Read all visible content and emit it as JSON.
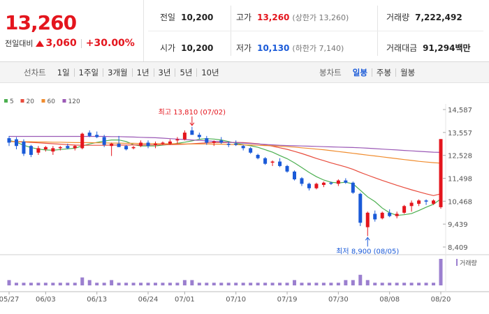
{
  "summary": {
    "price": "13,260",
    "change_label": "전일대비",
    "change_amount": "3,060",
    "change_pct": "+30.00%",
    "up_color": "#e4151d",
    "down_color": "#1a5ad8"
  },
  "stats": {
    "prev_close_label": "전일",
    "prev_close": "10,200",
    "open_label": "시가",
    "open": "10,200",
    "high_label": "고가",
    "high": "13,260",
    "upper_limit": "(상한가 13,260)",
    "low_label": "저가",
    "low": "10,130",
    "lower_limit": "(하한가 7,140)",
    "volume_label": "거래량",
    "volume": "7,222,492",
    "turnover_label": "거래대금",
    "turnover": "91,294백만"
  },
  "tabs": {
    "line_title": "선차트",
    "line_tabs": [
      "1일",
      "1주일",
      "3개월",
      "1년",
      "3년",
      "5년",
      "10년"
    ],
    "candle_title": "봉차트",
    "candle_tabs": [
      "일봉",
      "주봉",
      "월봉"
    ],
    "active_candle": "일봉"
  },
  "chart_data": {
    "type": "candlestick",
    "legend": [
      {
        "name": "5",
        "color": "#4caf50"
      },
      {
        "name": "20",
        "color": "#e84c3d"
      },
      {
        "name": "60",
        "color": "#f08c2e"
      },
      {
        "name": "120",
        "color": "#9b59b6"
      }
    ],
    "y_ticks": [
      "14,587",
      "13,557",
      "12,528",
      "11,498",
      "10,468",
      "9,439",
      "8,409"
    ],
    "ylim": [
      8409,
      14587
    ],
    "x_ticks": [
      {
        "label": "05/27",
        "index": 0
      },
      {
        "label": "06/03",
        "index": 5
      },
      {
        "label": "06/13",
        "index": 12
      },
      {
        "label": "06/24",
        "index": 19
      },
      {
        "label": "07/01",
        "index": 24
      },
      {
        "label": "07/10",
        "index": 31
      },
      {
        "label": "07/19",
        "index": 38
      },
      {
        "label": "07/30",
        "index": 45
      },
      {
        "label": "08/08",
        "index": 52
      },
      {
        "label": "08/20",
        "index": 59
      }
    ],
    "high_annotation": {
      "text": "최고 13,810 (07/02)",
      "index": 25,
      "value": 13810
    },
    "low_annotation": {
      "text": "최저 8,900 (08/05)",
      "index": 49,
      "value": 8900
    },
    "candles": [
      [
        13300,
        13400,
        12950,
        13100
      ],
      [
        13250,
        13350,
        12800,
        12950
      ],
      [
        13150,
        13250,
        12500,
        12600
      ],
      [
        12950,
        13000,
        12450,
        12550
      ],
      [
        12650,
        12950,
        12550,
        12850
      ],
      [
        12800,
        12950,
        12700,
        12900
      ],
      [
        12700,
        12950,
        12550,
        12850
      ],
      [
        12850,
        12950,
        12750,
        12900
      ],
      [
        12950,
        13050,
        12800,
        12850
      ],
      [
        12850,
        13000,
        12750,
        12950
      ],
      [
        12850,
        13550,
        12800,
        13500
      ],
      [
        13550,
        13650,
        13350,
        13400
      ],
      [
        13450,
        13600,
        13300,
        13350
      ],
      [
        13350,
        13450,
        12900,
        13000
      ],
      [
        12950,
        13100,
        12500,
        13050
      ],
      [
        13050,
        13400,
        12950,
        12900
      ],
      [
        12950,
        13000,
        12750,
        12800
      ],
      [
        12850,
        12950,
        12800,
        12900
      ],
      [
        12950,
        13200,
        12900,
        13100
      ],
      [
        13100,
        13200,
        12850,
        12950
      ],
      [
        13000,
        13150,
        12850,
        13050
      ],
      [
        13050,
        13150,
        13000,
        13100
      ],
      [
        13050,
        13250,
        13000,
        13150
      ],
      [
        13200,
        13350,
        13050,
        13250
      ],
      [
        13250,
        13650,
        13200,
        13550
      ],
      [
        13650,
        13810,
        13500,
        13450
      ],
      [
        13450,
        13550,
        13250,
        13350
      ],
      [
        13300,
        13400,
        13000,
        13100
      ],
      [
        13100,
        13200,
        12950,
        13150
      ],
      [
        13200,
        13350,
        13050,
        13100
      ],
      [
        13050,
        13150,
        12900,
        13000
      ],
      [
        13050,
        13200,
        12950,
        13000
      ],
      [
        12950,
        13000,
        12750,
        12850
      ],
      [
        12850,
        12900,
        12600,
        12650
      ],
      [
        12550,
        12600,
        12350,
        12400
      ],
      [
        12400,
        12450,
        12100,
        12150
      ],
      [
        12200,
        12300,
        12050,
        12250
      ],
      [
        12250,
        12400,
        12000,
        12050
      ],
      [
        12050,
        12100,
        11750,
        11800
      ],
      [
        11800,
        11850,
        11400,
        11450
      ],
      [
        11500,
        11550,
        11150,
        11250
      ],
      [
        11250,
        11300,
        10950,
        11050
      ],
      [
        11050,
        11300,
        11000,
        11250
      ],
      [
        11200,
        11350,
        11100,
        11300
      ],
      [
        11300,
        11350,
        11200,
        11250
      ],
      [
        11250,
        11450,
        11150,
        11400
      ],
      [
        11400,
        11500,
        11250,
        11300
      ],
      [
        11300,
        11350,
        10800,
        10850
      ],
      [
        10800,
        10850,
        9350,
        9500
      ],
      [
        9300,
        10000,
        8900,
        9950
      ],
      [
        9900,
        10050,
        9550,
        9650
      ],
      [
        9700,
        10000,
        9650,
        9950
      ],
      [
        9950,
        10100,
        9750,
        9800
      ],
      [
        9800,
        10000,
        9700,
        9900
      ],
      [
        9950,
        10300,
        9900,
        10250
      ],
      [
        10250,
        10500,
        10000,
        10400
      ],
      [
        10350,
        10550,
        10250,
        10500
      ],
      [
        10500,
        10550,
        10300,
        10450
      ],
      [
        10350,
        10550,
        10300,
        10500
      ],
      [
        10200,
        13260,
        10130,
        13260
      ]
    ],
    "ma": {
      "5": [
        13200,
        13120,
        12980,
        12880,
        12810,
        12770,
        12760,
        12790,
        12820,
        12850,
        12950,
        13040,
        13110,
        13170,
        13220,
        13220,
        13150,
        13010,
        12950,
        12950,
        12950,
        12990,
        13020,
        13070,
        13120,
        13180,
        13250,
        13280,
        13260,
        13220,
        13150,
        13070,
        13010,
        12960,
        12890,
        12780,
        12670,
        12520,
        12380,
        12190,
        11980,
        11760,
        11570,
        11420,
        11320,
        11290,
        11320,
        11250,
        10960,
        10660,
        10450,
        10160,
        9950,
        9830,
        9860,
        9910,
        10050,
        10200,
        10330,
        10570
      ],
      "20": [
        13150,
        13140,
        13130,
        13110,
        13090,
        13070,
        13050,
        13030,
        13010,
        12990,
        12980,
        12980,
        12980,
        12980,
        12990,
        12990,
        12990,
        13000,
        13000,
        13000,
        13000,
        13010,
        13010,
        13020,
        13030,
        13050,
        13070,
        13090,
        13100,
        13110,
        13110,
        13110,
        13100,
        13080,
        13050,
        13000,
        12940,
        12870,
        12800,
        12710,
        12610,
        12500,
        12390,
        12290,
        12190,
        12100,
        12010,
        11900,
        11760,
        11640,
        11520,
        11400,
        11290,
        11180,
        11080,
        10980,
        10890,
        10800,
        10720,
        10800
      ],
      "60": [
        13150,
        13150,
        13140,
        13140,
        13130,
        13130,
        13120,
        13120,
        13110,
        13100,
        13100,
        13100,
        13090,
        13090,
        13080,
        13080,
        13070,
        13070,
        13060,
        13060,
        13060,
        13050,
        13050,
        13050,
        13040,
        13040,
        13040,
        13040,
        13030,
        13030,
        13020,
        13010,
        13000,
        12990,
        12980,
        12970,
        12960,
        12940,
        12920,
        12900,
        12870,
        12840,
        12810,
        12780,
        12740,
        12700,
        12660,
        12620,
        12580,
        12540,
        12500,
        12460,
        12420,
        12380,
        12340,
        12300,
        12260,
        12230,
        12200,
        12180
      ],
      "120": [
        13380,
        13380,
        13380,
        13380,
        13380,
        13380,
        13380,
        13380,
        13380,
        13380,
        13380,
        13380,
        13380,
        13380,
        13370,
        13370,
        13360,
        13350,
        13340,
        13330,
        13320,
        13300,
        13280,
        13260,
        13240,
        13220,
        13200,
        13180,
        13160,
        13140,
        13120,
        13100,
        13080,
        13060,
        13040,
        13020,
        13000,
        12980,
        12970,
        12960,
        12950,
        12940,
        12930,
        12920,
        12910,
        12900,
        12890,
        12880,
        12870,
        12850,
        12830,
        12810,
        12790,
        12770,
        12750,
        12730,
        12710,
        12690,
        12670,
        12660
      ]
    },
    "volume_label": "거래량",
    "volume": [
      2,
      1,
      1,
      1,
      1,
      1,
      1,
      1,
      1,
      1,
      3,
      2,
      1,
      1,
      2,
      1,
      1,
      1,
      1,
      1,
      1,
      1,
      1,
      1,
      2,
      2,
      1,
      1,
      1,
      1,
      1,
      1,
      1,
      1,
      1,
      1,
      1,
      1,
      1,
      2,
      1,
      1,
      1,
      1,
      1,
      1,
      2,
      2,
      4,
      2,
      1,
      1,
      1,
      1,
      1,
      1,
      1,
      1,
      1,
      10
    ]
  }
}
